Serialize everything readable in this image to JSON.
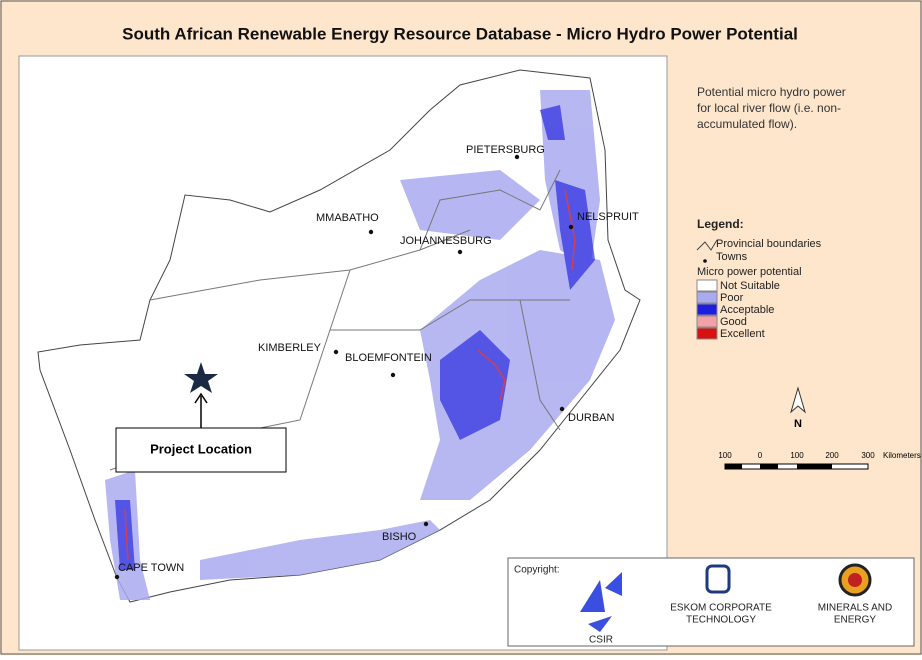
{
  "header": {
    "title": "South African Renewable Energy Resource Database - Micro Hydro Power Potential"
  },
  "description": [
    "Potential micro hydro power",
    "for local river flow (i.e. non-",
    "accumulated flow)."
  ],
  "legend": {
    "title": "Legend:",
    "symbols": [
      "Provincial boundaries",
      "Towns"
    ],
    "subtitle": "Micro power potential",
    "classes": [
      {
        "label": "Not Suitable",
        "color": "#ffffff"
      },
      {
        "label": "Poor",
        "color": "#aaaaf0"
      },
      {
        "label": "Acceptable",
        "color": "#1e1ee0"
      },
      {
        "label": "Good",
        "color": "#f4a0a8"
      },
      {
        "label": "Excellent",
        "color": "#d81010"
      }
    ]
  },
  "towns": [
    "PIETERSBURG",
    "MMABATHO",
    "JOHANNESBURG",
    "NELSPRUIT",
    "KIMBERLEY",
    "BLOEMFONTEIN",
    "DURBAN",
    "BISHO",
    "CAPE TOWN"
  ],
  "north": "N",
  "scale": {
    "labels": [
      "100",
      "0",
      "100",
      "200",
      "300"
    ],
    "unit": "Kilometers"
  },
  "annotation": "Project Location",
  "copyright": {
    "label": "Copyright:",
    "logos": [
      [
        "CSIR"
      ],
      [
        "ESKOM CORPORATE",
        "TECHNOLOGY"
      ],
      [
        "MINERALS AND",
        "ENERGY"
      ]
    ]
  }
}
